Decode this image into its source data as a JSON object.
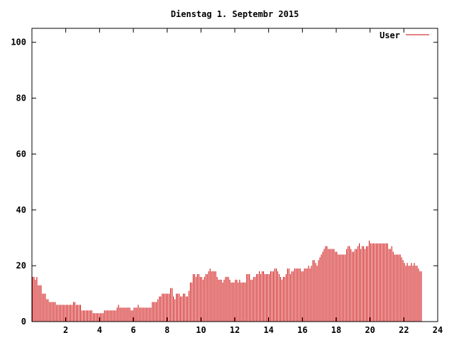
{
  "chart_data": {
    "type": "bar",
    "title": "Dienstag 1. Septembr 2015",
    "xlabel": "",
    "ylabel": "",
    "xlim": [
      0,
      24
    ],
    "ylim": [
      0,
      105
    ],
    "x_ticks": [
      "2",
      "4",
      "6",
      "8",
      "10",
      "12",
      "14",
      "16",
      "18",
      "20",
      "22",
      "24"
    ],
    "y_ticks": [
      "0",
      "20",
      "40",
      "60",
      "80",
      "100"
    ],
    "grid": false,
    "legend_position": "top-right",
    "series": [
      {
        "name": "User",
        "color": "#cc0000",
        "sample_interval_hours": 0.0833,
        "values": [
          16,
          16,
          15,
          16,
          13,
          13,
          13,
          10,
          10,
          10,
          8,
          8,
          7,
          7,
          7,
          7,
          7,
          6,
          6,
          6,
          6,
          6,
          6,
          6,
          6,
          6,
          6,
          6,
          6,
          7,
          7,
          6,
          6,
          6,
          6,
          4,
          4,
          4,
          4,
          4,
          4,
          4,
          4,
          3,
          3,
          3,
          3,
          3,
          3,
          3,
          3,
          4,
          4,
          4,
          4,
          4,
          4,
          4,
          4,
          4,
          5,
          6,
          5,
          5,
          5,
          5,
          5,
          5,
          5,
          5,
          4,
          4,
          5,
          5,
          5,
          6,
          5,
          5,
          5,
          5,
          5,
          5,
          5,
          5,
          5,
          7,
          7,
          7,
          7,
          8,
          9,
          9,
          10,
          10,
          10,
          10,
          10,
          10,
          12,
          12,
          9,
          8,
          10,
          10,
          10,
          9,
          9,
          10,
          10,
          9,
          9,
          11,
          14,
          14,
          17,
          17,
          16,
          17,
          17,
          16,
          16,
          15,
          16,
          17,
          17,
          18,
          19,
          18,
          18,
          18,
          18,
          16,
          15,
          15,
          15,
          14,
          15,
          16,
          16,
          16,
          15,
          14,
          14,
          14,
          15,
          15,
          14,
          15,
          14,
          14,
          14,
          14,
          17,
          17,
          17,
          15,
          15,
          16,
          16,
          17,
          17,
          18,
          17,
          18,
          18,
          17,
          17,
          17,
          17,
          18,
          18,
          18,
          19,
          19,
          18,
          17,
          16,
          15,
          16,
          16,
          17,
          19,
          19,
          17,
          18,
          18,
          19,
          19,
          19,
          19,
          19,
          18,
          18,
          19,
          19,
          19,
          20,
          19,
          20,
          22,
          22,
          21,
          20,
          22,
          23,
          24,
          25,
          26,
          27,
          27,
          26,
          26,
          26,
          26,
          26,
          25,
          25,
          24,
          24,
          24,
          24,
          24,
          24,
          26,
          27,
          27,
          26,
          25,
          25,
          26,
          26,
          27,
          28,
          26,
          27,
          27,
          26,
          27,
          27,
          29,
          28,
          28,
          28,
          28,
          28,
          28,
          28,
          28,
          28,
          28,
          28,
          28,
          28,
          26,
          26,
          27,
          25,
          24,
          24,
          24,
          24,
          24,
          23,
          22,
          21,
          20,
          21,
          20,
          20,
          21,
          20,
          21,
          20,
          20,
          19,
          18,
          18
        ]
      }
    ]
  }
}
